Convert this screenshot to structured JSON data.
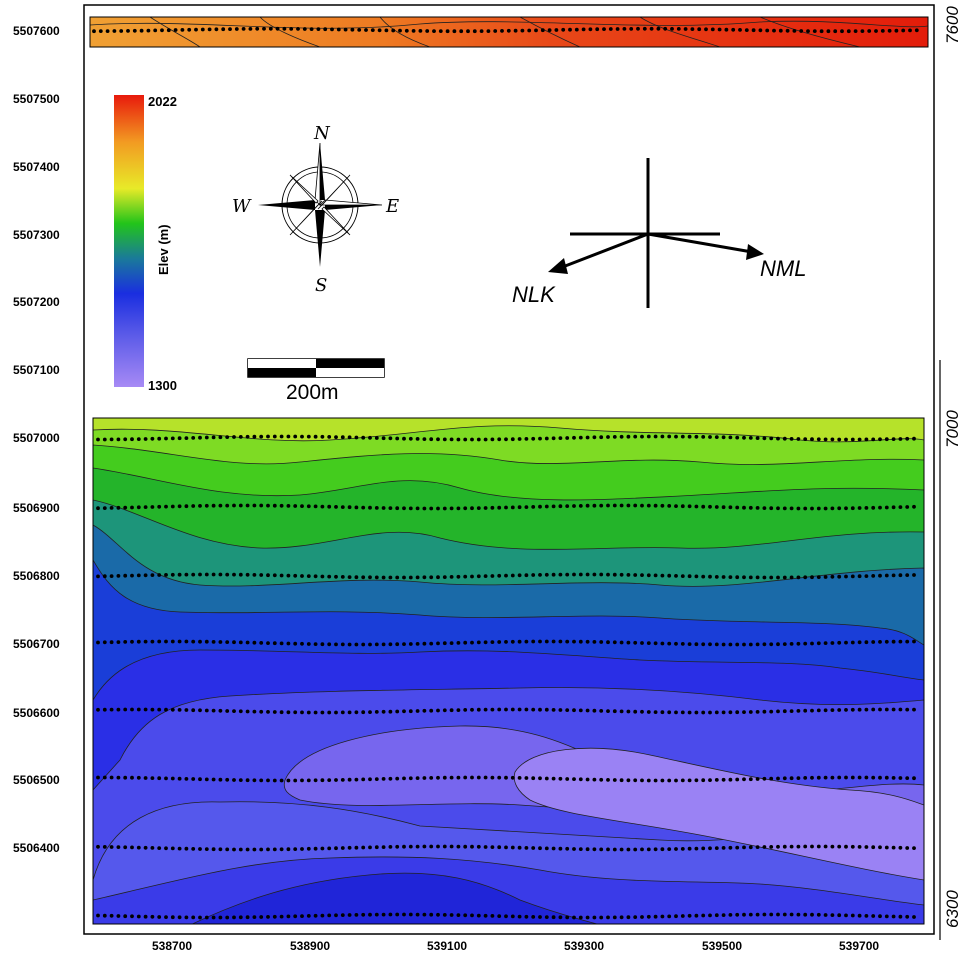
{
  "colors": {
    "low": "#a07cf2",
    "mid_blue": "#2030e0",
    "teal": "#178a8a",
    "green": "#22c41a",
    "yellow": "#e8ea28",
    "high": "#e81a0c",
    "frame": "#000000",
    "station_dots": "#000000"
  },
  "map": {
    "y_axis_ticks": [
      "5507600",
      "5507500",
      "5507400",
      "5507300",
      "5507200",
      "5507100",
      "5507000",
      "5506900",
      "5506800",
      "5506700",
      "5506600",
      "5506500",
      "5506400"
    ],
    "x_axis_ticks": [
      "538700",
      "538900",
      "539100",
      "539300",
      "539500",
      "539700"
    ],
    "right_axis_ticks": [
      "7600",
      "7000",
      "6300"
    ]
  },
  "legend": {
    "max_label": "2022",
    "min_label": "1300",
    "title": "Elev (m)"
  },
  "compass": {
    "north": "N",
    "south": "S",
    "east": "E",
    "west": "W"
  },
  "directions": {
    "nlk": "NLK",
    "nml": "NML"
  },
  "scale_bar": {
    "label": "200m"
  }
}
